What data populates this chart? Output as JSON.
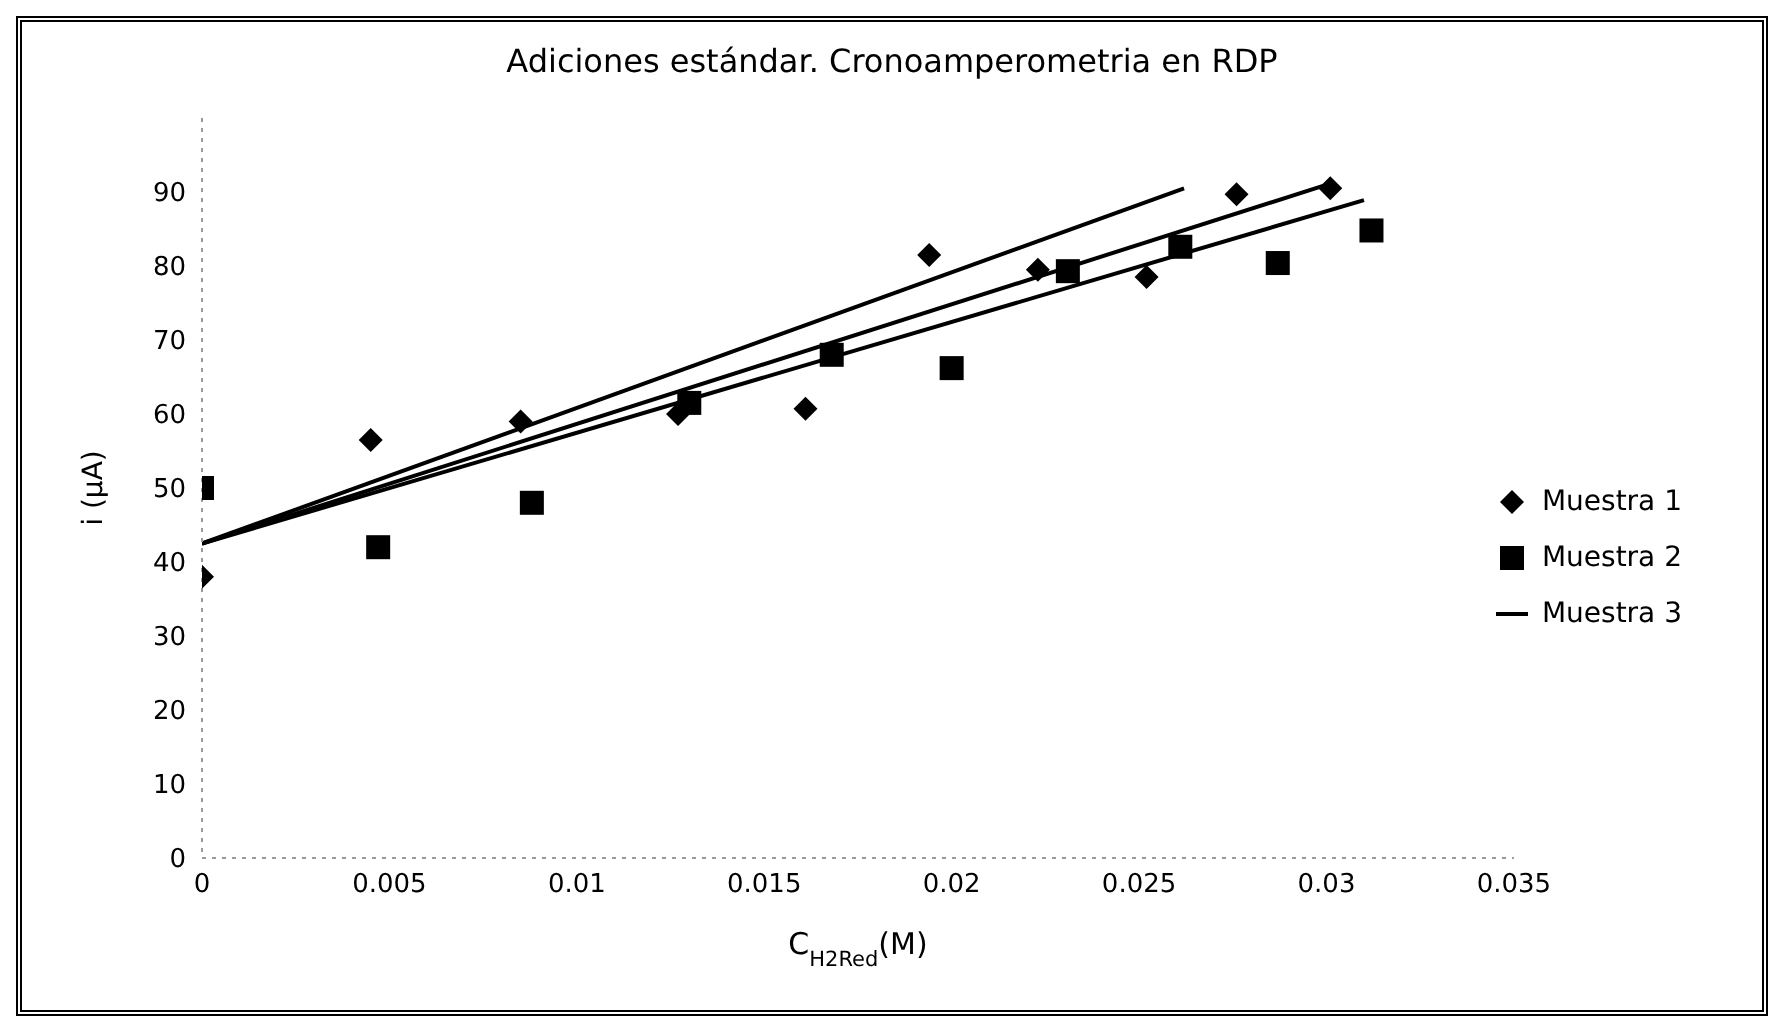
{
  "chart_data": {
    "type": "scatter",
    "title": "Adiciones estándar. Cronoamperometria en RDP",
    "xlabel": "C$_{H2Red}$(M)",
    "ylabel": "i (μA)",
    "xlim": [
      0,
      0.035
    ],
    "xticks": [
      0,
      0.005,
      0.01,
      0.015,
      0.02,
      0.025,
      0.03,
      0.035
    ],
    "ylim": [
      0,
      100
    ],
    "yticks": [
      0,
      10,
      20,
      30,
      40,
      50,
      60,
      70,
      80,
      90
    ],
    "grid": false,
    "legend": "right",
    "series": [
      {
        "name": "Muestra 1",
        "marker": "diamond",
        "color": "#000000",
        "x": [
          0,
          0.0045,
          0.0085,
          0.0127,
          0.0161,
          0.0194,
          0.0223,
          0.0252,
          0.0276,
          0.0301
        ],
        "values": [
          38,
          56.5,
          59,
          60,
          60.7,
          81.5,
          79.5,
          78.5,
          89.7,
          90.5
        ]
      },
      {
        "name": "Muestra 2",
        "marker": "square",
        "color": "#000000",
        "x": [
          0,
          0.0047,
          0.0088,
          0.013,
          0.0168,
          0.02,
          0.0231,
          0.0261,
          0.0287,
          0.0312
        ],
        "values": [
          50,
          42,
          48,
          61.5,
          68,
          66.2,
          79.3,
          82.6,
          80.4,
          84.8
        ]
      },
      {
        "name": "Muestra 3",
        "type": "line",
        "marker": "none",
        "color": "#000000",
        "x": [
          0,
          0.0262
        ],
        "values": [
          42.5,
          90.5
        ]
      },
      {
        "type": "line",
        "marker": "none",
        "color": "#000000",
        "x": [
          0,
          0.0302
        ],
        "values": [
          42.5,
          91.3
        ]
      },
      {
        "type": "line",
        "marker": "none",
        "color": "#000000",
        "x": [
          0,
          0.031
        ],
        "values": [
          42.5,
          88.9
        ]
      }
    ]
  }
}
